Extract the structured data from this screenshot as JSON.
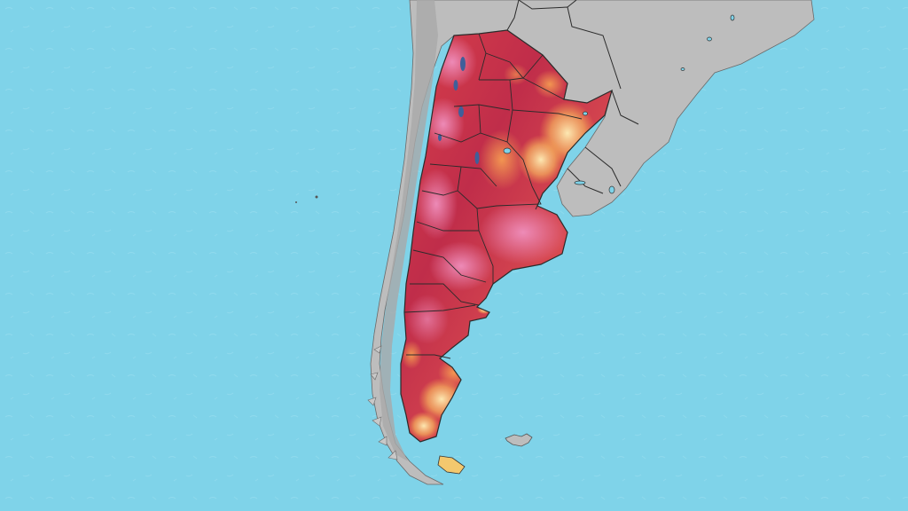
{
  "map": {
    "region": "Argentina",
    "colors": {
      "ocean": "#7fd3e9",
      "land_neighbors": "#bdbdbd",
      "land_shade": "#a9a9a9",
      "borders": "#2b2b2b",
      "heat_low": "#fff1b8",
      "heat_mid": "#f39b4b",
      "heat_high": "#d8404a",
      "heat_very_high": "#b3214a",
      "heat_extreme": "#e985b6",
      "cold_spot": "#3f5f9a"
    },
    "icons": [
      "ocean-texture",
      "mountain-relief"
    ]
  }
}
